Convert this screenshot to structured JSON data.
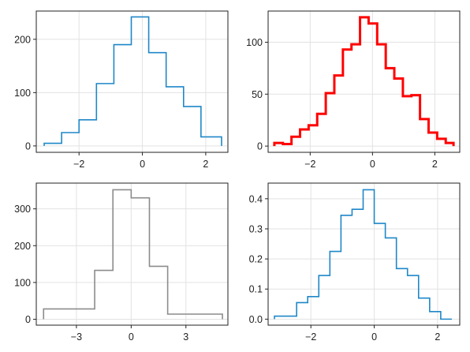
{
  "chart_data": [
    {
      "type": "histogram-step",
      "color": "#1f87c8",
      "line_width": "normal",
      "grid": true,
      "xlim": [
        -3.35,
        2.7
      ],
      "ylim": [
        -12,
        253
      ],
      "xticks": [
        -2,
        0,
        2
      ],
      "xtick_labels": [
        "−2",
        "0",
        "2"
      ],
      "yticks": [
        0,
        100,
        200
      ],
      "ytick_labels": [
        "0",
        "100",
        "200"
      ],
      "bin_edges": [
        -3.1,
        -2.55,
        -2.0,
        -1.45,
        -0.9,
        -0.35,
        0.2,
        0.75,
        1.3,
        1.85,
        2.5
      ],
      "counts": [
        5,
        25,
        49,
        117,
        190,
        242,
        175,
        111,
        74,
        17
      ]
    },
    {
      "type": "histogram-step",
      "color": "#ff0000",
      "line_width": "thick",
      "grid": true,
      "xlim": [
        -3.35,
        2.8
      ],
      "ylim": [
        -6,
        130
      ],
      "xticks": [
        -2,
        0,
        2
      ],
      "xtick_labels": [
        "−2",
        "0",
        "2"
      ],
      "yticks": [
        0,
        50,
        100
      ],
      "ytick_labels": [
        "0",
        "50",
        "100"
      ],
      "bin_edges": [
        -3.15,
        -2.875,
        -2.6,
        -2.325,
        -2.05,
        -1.775,
        -1.5,
        -1.225,
        -0.95,
        -0.675,
        -0.4,
        -0.125,
        0.15,
        0.425,
        0.7,
        0.975,
        1.25,
        1.525,
        1.8,
        2.075,
        2.35,
        2.6
      ],
      "counts": [
        3,
        2,
        9,
        16,
        20,
        31,
        51,
        68,
        93,
        98,
        124,
        118,
        98,
        75,
        65,
        48,
        49,
        26,
        13,
        7,
        3
      ]
    },
    {
      "type": "histogram-step",
      "color": "#8c8c8c",
      "line_width": "normal",
      "grid": true,
      "xlim": [
        -5.2,
        5.3
      ],
      "ylim": [
        -16,
        370
      ],
      "xticks": [
        -3,
        0,
        3
      ],
      "xtick_labels": [
        "−3",
        "0",
        "3"
      ],
      "yticks": [
        0,
        100,
        200,
        300
      ],
      "ytick_labels": [
        "0",
        "100",
        "200",
        "300"
      ],
      "bin_edges": [
        -4.8,
        -2.0,
        -1.0,
        0.0,
        1.0,
        2.0,
        5.0
      ],
      "counts": [
        28,
        133,
        352,
        330,
        144,
        14
      ]
    },
    {
      "type": "histogram-step",
      "color": "#1f87c8",
      "line_width": "normal",
      "grid": true,
      "xlim": [
        -3.35,
        2.7
      ],
      "ylim": [
        -0.02,
        0.452
      ],
      "xticks": [
        -2,
        0,
        2
      ],
      "xtick_labels": [
        "−2",
        "0",
        "2"
      ],
      "yticks": [
        0.0,
        0.1,
        0.2,
        0.3,
        0.4
      ],
      "ytick_labels": [
        "0.0",
        "0.1",
        "0.2",
        "0.3",
        "0.4"
      ],
      "bin_edges": [
        -3.15,
        -2.8,
        -2.45,
        -2.1,
        -1.75,
        -1.4,
        -1.05,
        -0.7,
        -0.35,
        0.0,
        0.35,
        0.7,
        1.05,
        1.4,
        1.75,
        2.1,
        2.45
      ],
      "counts": [
        0.01,
        0.01,
        0.055,
        0.075,
        0.145,
        0.225,
        0.345,
        0.365,
        0.43,
        0.318,
        0.27,
        0.168,
        0.145,
        0.07,
        0.025,
        0.0
      ]
    }
  ]
}
